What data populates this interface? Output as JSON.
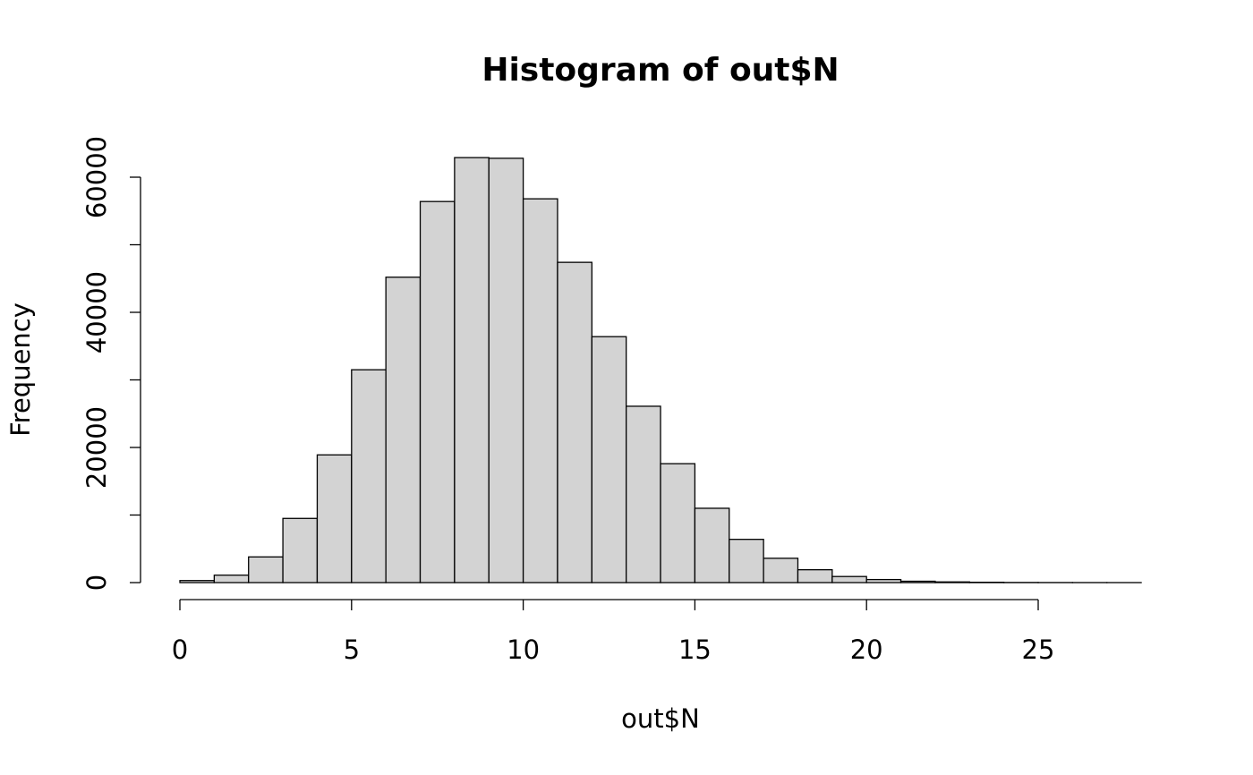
{
  "chart_data": {
    "type": "histogram",
    "title": "Histogram of out$N",
    "x_label": "out$N",
    "y_label": "Frequency",
    "bins": [
      0,
      1,
      2,
      3,
      4,
      5,
      6,
      7,
      8,
      9,
      10,
      11,
      12,
      13,
      14,
      15,
      16,
      17,
      18,
      19,
      20,
      21,
      22,
      23,
      24,
      25,
      26,
      27,
      28
    ],
    "values": [
      300,
      1100,
      3800,
      9500,
      18900,
      31500,
      45200,
      56400,
      62900,
      62800,
      56800,
      47400,
      36400,
      26100,
      17600,
      11000,
      6400,
      3600,
      1900,
      900,
      450,
      200,
      100,
      50,
      20,
      10,
      5,
      2
    ],
    "color": "#d3d3d3",
    "xlim": [
      0,
      25
    ],
    "xticks": [
      0,
      5,
      10,
      15,
      20,
      25
    ],
    "ylim": [
      0,
      60000
    ],
    "yticks": [
      0,
      20000,
      40000,
      60000
    ],
    "yminorticks": [
      10000,
      30000,
      50000
    ]
  }
}
